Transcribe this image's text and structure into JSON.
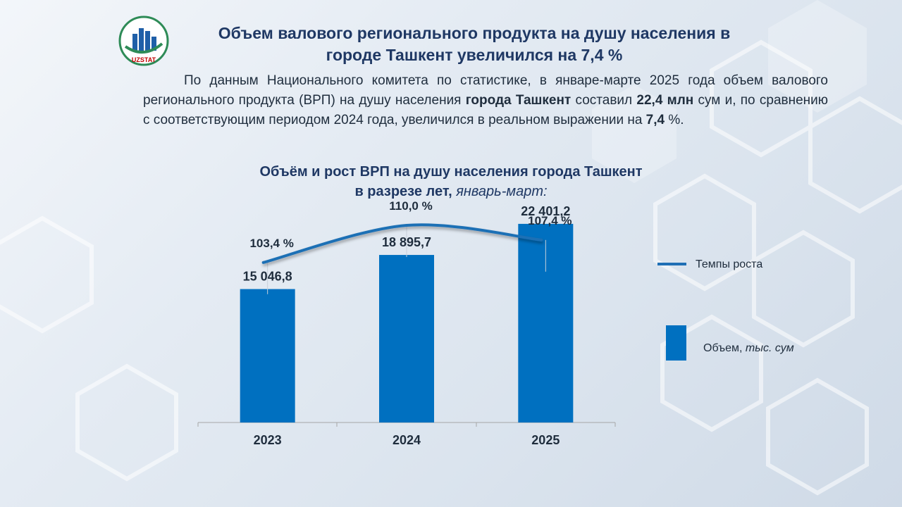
{
  "header": {
    "logo_text": "UZSTAT",
    "title_line1": "Объем валового регионального продукта на душу населения в",
    "title_line2": "городе Ташкент увеличился на 7,4 %"
  },
  "intro": {
    "p1": "По данным Национального комитета по статистике, в январе-марте 2025 года объем валового регионального продукта (ВРП) на душу населения ",
    "b1": "города Ташкент",
    "p2": " составил ",
    "b2": "22,4 млн",
    "p3": " сум и, по сравнению с соответствующим периодом 2024 года, увеличился в реальном выражении на ",
    "b3": "7,4",
    "p4": " %."
  },
  "chart_title": {
    "line1": "Объём и рост ВРП на душу населения города Ташкент",
    "line2_bold": "в разрезе лет,",
    "line2_italic": " январь-март:"
  },
  "colors": {
    "bar": "#0070c0",
    "line": "#1f6fb5",
    "text_dark": "#1f2d3d",
    "title": "#1f3864"
  },
  "chart_data": {
    "type": "bar",
    "categories": [
      "2023",
      "2024",
      "2025"
    ],
    "series": [
      {
        "name": "Объем, тыс. сум",
        "values": [
          15046.8,
          18895.7,
          22401.2
        ],
        "labels": [
          "15 046,8",
          "18 895,7",
          "22 401,2"
        ]
      },
      {
        "name": "Темпы роста",
        "type": "line",
        "values": [
          103.4,
          110.0,
          107.4
        ],
        "labels": [
          "103,4 %",
          "110,0 %",
          "107,4 %"
        ]
      }
    ],
    "legend": {
      "rate": "Темпы роста",
      "volume_prefix": "Объем, ",
      "volume_unit": "тыс. сум"
    },
    "ylim_bars": [
      0,
      27000
    ],
    "ylim_rate": [
      90,
      115
    ]
  }
}
